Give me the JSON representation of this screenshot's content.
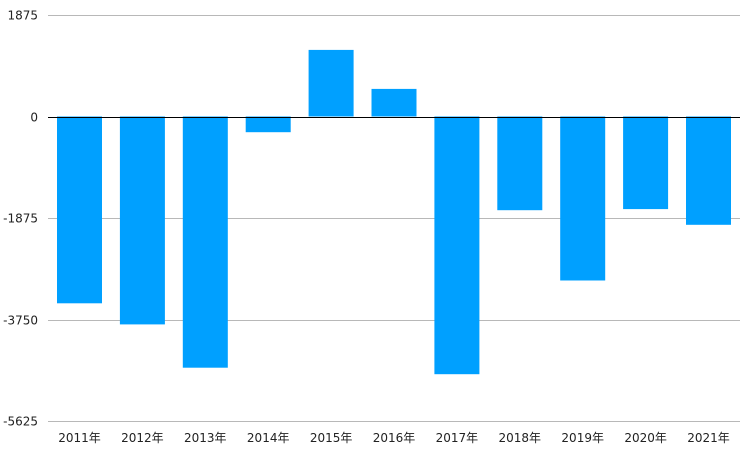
{
  "chart_data": {
    "type": "bar",
    "categories": [
      "2011年",
      "2012年",
      "2013年",
      "2014年",
      "2015年",
      "2016年",
      "2017年",
      "2018年",
      "2019年",
      "2020年",
      "2021年"
    ],
    "values": [
      -3450,
      -3840,
      -4640,
      -290,
      1230,
      510,
      -4760,
      -1730,
      -3030,
      -1710,
      -2000
    ],
    "yticks": [
      1875,
      0,
      -1875,
      -3750,
      -5625
    ],
    "ytick_labels": [
      "1875",
      "0",
      "-1875",
      "-3750",
      "-5625"
    ],
    "ylim": [
      -5625,
      1875
    ],
    "color": "#00a0ff",
    "grid": true,
    "title": "",
    "xlabel": "",
    "ylabel": ""
  }
}
